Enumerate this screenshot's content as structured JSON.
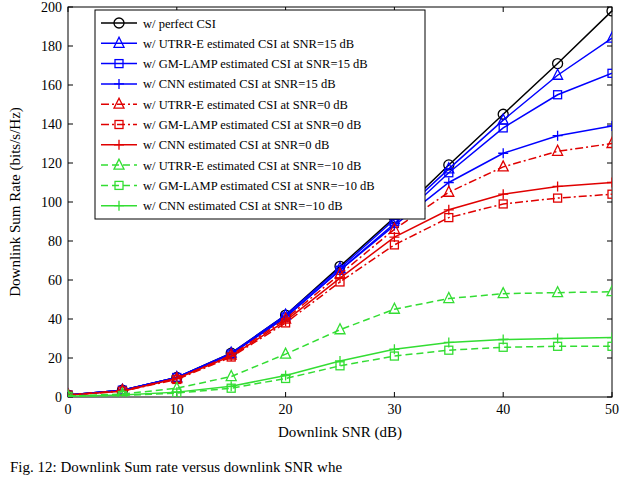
{
  "chart_data": {
    "type": "line",
    "x_label": "Downlink SNR (dB)",
    "y_label": "Downlink Sum Rate (bits/s/Hz)",
    "caption": "Fig. 12: Downlink Sum rate versus downlink SNR whe",
    "x": [
      0,
      5,
      10,
      15,
      20,
      25,
      30,
      35,
      40,
      45,
      50
    ],
    "xlim": [
      0,
      50
    ],
    "xticks": [
      0,
      10,
      20,
      30,
      40,
      50
    ],
    "ylim": [
      0,
      200
    ],
    "yticks": [
      0,
      20,
      40,
      60,
      80,
      100,
      120,
      140,
      160,
      180,
      200
    ],
    "grid": false,
    "legend": "upper left",
    "series": [
      {
        "name": "w/ perfect CSI",
        "color": "#000000",
        "marker": "circle",
        "line_style": "solid",
        "values": [
          1,
          3.5,
          10,
          22.5,
          42,
          67,
          92,
          119,
          145,
          171,
          198
        ]
      },
      {
        "name": "w/ UTRR-E estimated CSI at SNR=15 dB",
        "color": "#0000ff",
        "marker": "triangle",
        "line_style": "solid",
        "values": [
          1,
          3.5,
          10,
          22.5,
          42,
          66,
          91,
          117,
          142,
          165,
          184
        ]
      },
      {
        "name": "w/ GM-LAMP estimated CSI at SNR=15 dB",
        "color": "#0000ff",
        "marker": "square",
        "line_style": "solid",
        "values": [
          1,
          3.5,
          10,
          22,
          41,
          65,
          89,
          115,
          138,
          155,
          166
        ]
      },
      {
        "name": "w/ CNN estimated CSI at SNR=15 dB",
        "color": "#0000ff",
        "marker": "plus",
        "line_style": "solid",
        "values": [
          1,
          3.5,
          10,
          22,
          41,
          65,
          88,
          110,
          125,
          134,
          139
        ]
      },
      {
        "name": "w/ UTRR-E estimated CSI at SNR=0 dB",
        "color": "#e00000",
        "marker": "triangle",
        "line_style": "dashdot",
        "values": [
          1,
          3.3,
          9.5,
          21.5,
          40,
          63,
          86,
          105,
          118,
          126,
          130
        ]
      },
      {
        "name": "w/ GM-LAMP estimated CSI at SNR=0 dB",
        "color": "#e00000",
        "marker": "square",
        "line_style": "dashdot",
        "values": [
          1,
          3,
          9,
          20.5,
          38,
          59,
          78,
          92,
          99,
          102,
          104
        ]
      },
      {
        "name": "w/ CNN estimated CSI at SNR=0 dB",
        "color": "#e00000",
        "marker": "plus",
        "line_style": "solid",
        "values": [
          1,
          3,
          9.5,
          21,
          39,
          61,
          82,
          96,
          104,
          108,
          110
        ]
      },
      {
        "name": "w/ UTRR-E estimated CSI at SNR=−10 dB",
        "color": "#33dd33",
        "marker": "triangle",
        "line_style": "dashed",
        "values": [
          0.5,
          1.5,
          4.5,
          10.5,
          22,
          34.5,
          45,
          50.5,
          53,
          53.5,
          54
        ]
      },
      {
        "name": "w/ GM-LAMP estimated CSI at SNR=−10 dB",
        "color": "#33dd33",
        "marker": "square",
        "line_style": "dashed",
        "values": [
          0.3,
          0.8,
          2,
          4.5,
          9.5,
          16,
          21,
          24,
          25.5,
          26,
          26
        ]
      },
      {
        "name": "w/ CNN estimated CSI at SNR=−10 dB",
        "color": "#33dd33",
        "marker": "plus",
        "line_style": "solid",
        "values": [
          0.4,
          1,
          2.5,
          5.5,
          11,
          18.5,
          24.5,
          28,
          29.5,
          30,
          30.5
        ]
      }
    ]
  }
}
